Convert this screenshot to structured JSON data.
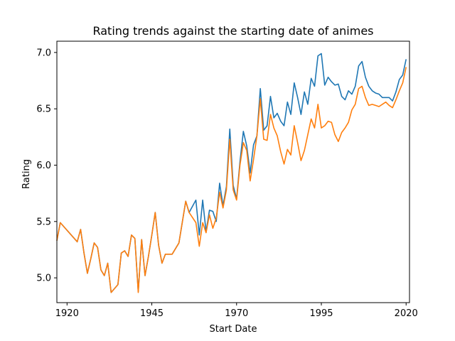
{
  "chart_data": {
    "type": "line",
    "title": "Rating trends against the starting date of animes",
    "xlabel": "Start Date",
    "ylabel": "Rating",
    "xlim": [
      1917,
      2021
    ],
    "ylim": [
      4.78,
      7.1
    ],
    "xticks": [
      1920,
      1945,
      1970,
      1995,
      2020
    ],
    "yticks": [
      5.0,
      5.5,
      6.0,
      6.5,
      7.0
    ],
    "ytick_labels": [
      "5.0",
      "5.5",
      "6.0",
      "6.5",
      "7.0"
    ],
    "grid": false,
    "legend": "none",
    "series": [
      {
        "color": "#1f77b4",
        "points": [
          [
            1917,
            5.33
          ],
          [
            1918,
            5.49
          ],
          [
            1923,
            5.32
          ],
          [
            1924,
            5.43
          ],
          [
            1925,
            5.22
          ],
          [
            1926,
            5.04
          ],
          [
            1927,
            5.17
          ],
          [
            1928,
            5.31
          ],
          [
            1929,
            5.27
          ],
          [
            1930,
            5.07
          ],
          [
            1931,
            5.02
          ],
          [
            1932,
            5.13
          ],
          [
            1933,
            4.87
          ],
          [
            1935,
            4.94
          ],
          [
            1936,
            5.22
          ],
          [
            1937,
            5.24
          ],
          [
            1938,
            5.19
          ],
          [
            1939,
            5.38
          ],
          [
            1940,
            5.35
          ],
          [
            1941,
            4.88
          ],
          [
            1942,
            5.34
          ],
          [
            1943,
            5.02
          ],
          [
            1944,
            5.19
          ],
          [
            1945,
            5.38
          ],
          [
            1946,
            5.58
          ],
          [
            1947,
            5.29
          ],
          [
            1948,
            5.13
          ],
          [
            1949,
            5.21
          ],
          [
            1951,
            5.21
          ],
          [
            1953,
            5.31
          ],
          [
            1955,
            5.68
          ],
          [
            1956,
            5.58
          ],
          [
            1958,
            5.69
          ],
          [
            1959,
            5.38
          ],
          [
            1960,
            5.69
          ],
          [
            1961,
            5.41
          ],
          [
            1962,
            5.6
          ],
          [
            1963,
            5.59
          ],
          [
            1964,
            5.5
          ],
          [
            1965,
            5.84
          ],
          [
            1966,
            5.64
          ],
          [
            1967,
            5.81
          ],
          [
            1968,
            6.32
          ],
          [
            1969,
            5.82
          ],
          [
            1970,
            5.7
          ],
          [
            1971,
            6.03
          ],
          [
            1972,
            6.3
          ],
          [
            1973,
            6.17
          ],
          [
            1974,
            5.93
          ],
          [
            1975,
            6.18
          ],
          [
            1976,
            6.26
          ],
          [
            1977,
            6.68
          ],
          [
            1978,
            6.31
          ],
          [
            1979,
            6.35
          ],
          [
            1980,
            6.61
          ],
          [
            1981,
            6.42
          ],
          [
            1982,
            6.46
          ],
          [
            1983,
            6.39
          ],
          [
            1984,
            6.35
          ],
          [
            1985,
            6.56
          ],
          [
            1986,
            6.45
          ],
          [
            1987,
            6.73
          ],
          [
            1988,
            6.6
          ],
          [
            1989,
            6.45
          ],
          [
            1990,
            6.65
          ],
          [
            1991,
            6.54
          ],
          [
            1992,
            6.77
          ],
          [
            1993,
            6.7
          ],
          [
            1994,
            6.97
          ],
          [
            1995,
            6.99
          ],
          [
            1996,
            6.71
          ],
          [
            1997,
            6.78
          ],
          [
            1998,
            6.74
          ],
          [
            1999,
            6.71
          ],
          [
            2000,
            6.72
          ],
          [
            2001,
            6.61
          ],
          [
            2002,
            6.58
          ],
          [
            2003,
            6.66
          ],
          [
            2004,
            6.63
          ],
          [
            2005,
            6.7
          ],
          [
            2006,
            6.88
          ],
          [
            2007,
            6.92
          ],
          [
            2008,
            6.78
          ],
          [
            2009,
            6.7
          ],
          [
            2010,
            6.66
          ],
          [
            2011,
            6.64
          ],
          [
            2012,
            6.63
          ],
          [
            2013,
            6.6
          ],
          [
            2014,
            6.6
          ],
          [
            2015,
            6.6
          ],
          [
            2016,
            6.57
          ],
          [
            2017,
            6.65
          ],
          [
            2018,
            6.76
          ],
          [
            2019,
            6.8
          ],
          [
            2020,
            6.94
          ]
        ]
      },
      {
        "color": "#ff7f0e",
        "points": [
          [
            1917,
            5.33
          ],
          [
            1918,
            5.49
          ],
          [
            1923,
            5.32
          ],
          [
            1924,
            5.43
          ],
          [
            1925,
            5.22
          ],
          [
            1926,
            5.04
          ],
          [
            1927,
            5.17
          ],
          [
            1928,
            5.31
          ],
          [
            1929,
            5.27
          ],
          [
            1930,
            5.07
          ],
          [
            1931,
            5.02
          ],
          [
            1932,
            5.13
          ],
          [
            1933,
            4.87
          ],
          [
            1935,
            4.94
          ],
          [
            1936,
            5.22
          ],
          [
            1937,
            5.24
          ],
          [
            1938,
            5.19
          ],
          [
            1939,
            5.38
          ],
          [
            1940,
            5.35
          ],
          [
            1941,
            4.87
          ],
          [
            1942,
            5.34
          ],
          [
            1943,
            5.02
          ],
          [
            1944,
            5.19
          ],
          [
            1945,
            5.38
          ],
          [
            1946,
            5.58
          ],
          [
            1947,
            5.29
          ],
          [
            1948,
            5.13
          ],
          [
            1949,
            5.21
          ],
          [
            1951,
            5.21
          ],
          [
            1953,
            5.31
          ],
          [
            1955,
            5.68
          ],
          [
            1956,
            5.58
          ],
          [
            1958,
            5.49
          ],
          [
            1959,
            5.28
          ],
          [
            1960,
            5.49
          ],
          [
            1961,
            5.4
          ],
          [
            1962,
            5.56
          ],
          [
            1963,
            5.44
          ],
          [
            1964,
            5.53
          ],
          [
            1965,
            5.76
          ],
          [
            1966,
            5.62
          ],
          [
            1967,
            5.78
          ],
          [
            1968,
            6.23
          ],
          [
            1969,
            5.78
          ],
          [
            1970,
            5.69
          ],
          [
            1971,
            6.0
          ],
          [
            1972,
            6.2
          ],
          [
            1973,
            6.13
          ],
          [
            1974,
            5.86
          ],
          [
            1975,
            6.05
          ],
          [
            1976,
            6.26
          ],
          [
            1977,
            6.59
          ],
          [
            1978,
            6.23
          ],
          [
            1979,
            6.22
          ],
          [
            1980,
            6.45
          ],
          [
            1981,
            6.33
          ],
          [
            1982,
            6.26
          ],
          [
            1983,
            6.12
          ],
          [
            1984,
            6.01
          ],
          [
            1985,
            6.14
          ],
          [
            1986,
            6.09
          ],
          [
            1987,
            6.35
          ],
          [
            1988,
            6.2
          ],
          [
            1989,
            6.04
          ],
          [
            1990,
            6.13
          ],
          [
            1991,
            6.27
          ],
          [
            1992,
            6.41
          ],
          [
            1993,
            6.33
          ],
          [
            1994,
            6.54
          ],
          [
            1995,
            6.33
          ],
          [
            1996,
            6.35
          ],
          [
            1997,
            6.39
          ],
          [
            1998,
            6.38
          ],
          [
            1999,
            6.27
          ],
          [
            2000,
            6.21
          ],
          [
            2001,
            6.29
          ],
          [
            2002,
            6.33
          ],
          [
            2003,
            6.38
          ],
          [
            2004,
            6.49
          ],
          [
            2005,
            6.54
          ],
          [
            2006,
            6.68
          ],
          [
            2007,
            6.7
          ],
          [
            2008,
            6.6
          ],
          [
            2009,
            6.53
          ],
          [
            2010,
            6.54
          ],
          [
            2011,
            6.53
          ],
          [
            2012,
            6.52
          ],
          [
            2013,
            6.54
          ],
          [
            2014,
            6.56
          ],
          [
            2015,
            6.53
          ],
          [
            2016,
            6.51
          ],
          [
            2017,
            6.58
          ],
          [
            2018,
            6.66
          ],
          [
            2019,
            6.73
          ],
          [
            2020,
            6.87
          ]
        ]
      }
    ]
  }
}
